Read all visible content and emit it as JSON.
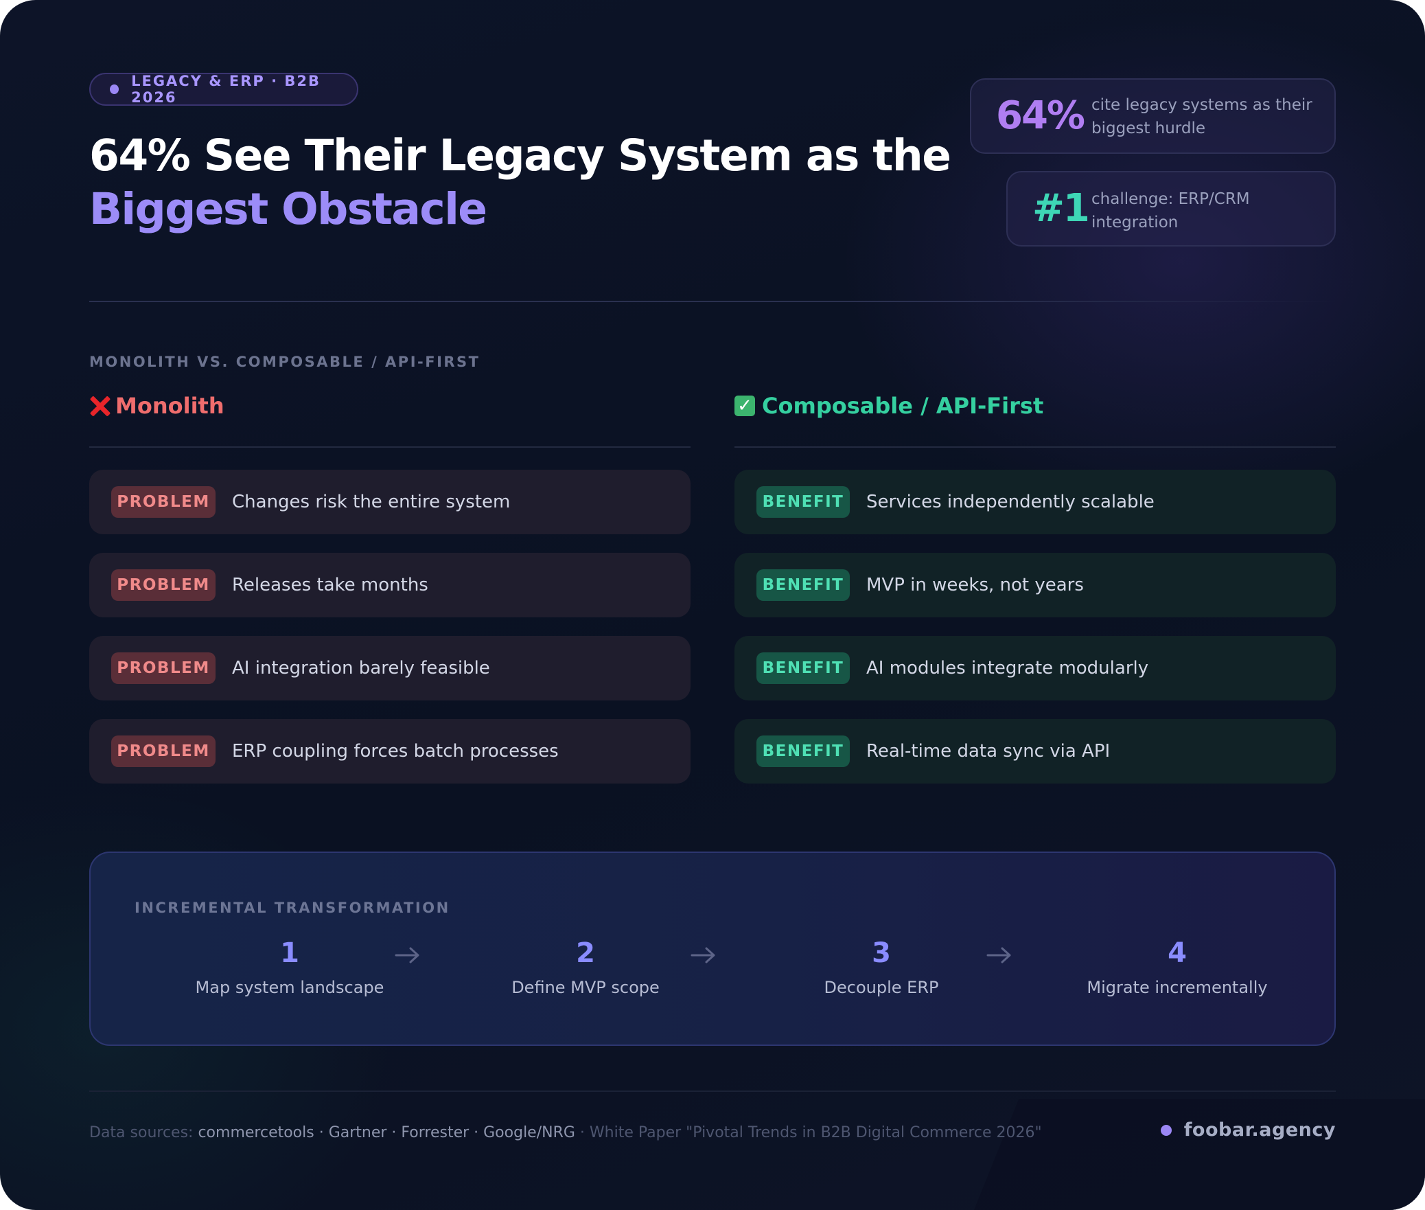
{
  "tag": "LEGACY & ERP · B2B 2026",
  "title": {
    "line1": "64% See Their Legacy System as the",
    "line2": "Biggest Obstacle"
  },
  "stats": [
    {
      "value": "64%",
      "text": "cite legacy systems as their biggest hurdle",
      "color": "#b07ef2"
    },
    {
      "value": "#1",
      "text": "challenge: ERP/CRM integration",
      "color": "#3ed6b6"
    }
  ],
  "comparison": {
    "label": "MONOLITH VS. COMPOSABLE / API-FIRST",
    "left": {
      "title": "Monolith",
      "icon": "cross-mark-icon",
      "badge": "PROBLEM",
      "items": [
        "Changes risk the entire system",
        "Releases take months",
        "AI integration barely feasible",
        "ERP coupling forces batch processes"
      ]
    },
    "right": {
      "title": "Composable / API-First",
      "icon": "check-box-icon",
      "badge": "BENEFIT",
      "items": [
        "Services independently scalable",
        "MVP in weeks, not years",
        "AI modules integrate modularly",
        "Real-time data sync via API"
      ]
    }
  },
  "transformation": {
    "label": "INCREMENTAL TRANSFORMATION",
    "steps": [
      {
        "num": "1",
        "label": "Map system landscape"
      },
      {
        "num": "2",
        "label": "Define MVP scope"
      },
      {
        "num": "3",
        "label": "Decouple ERP"
      },
      {
        "num": "4",
        "label": "Migrate incrementally"
      }
    ]
  },
  "footer": {
    "prefix": "Data sources: ",
    "sources": "commercetools · Gartner · Forrester · Google/NRG",
    "suffix": " · White Paper \"Pivotal Trends in B2B Digital Commerce 2026\"",
    "brand": "foobar.agency"
  }
}
